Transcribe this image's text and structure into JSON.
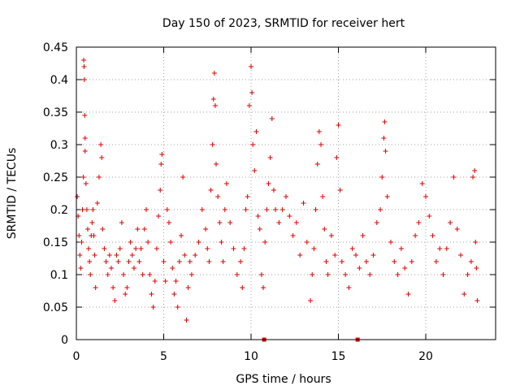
{
  "chart_data": {
    "type": "scatter",
    "title": "Day 150 of 2023, SRMTID for receiver hert",
    "xlabel": "GPS time / hours",
    "ylabel": "SRMTID / TECUs",
    "xlim": [
      0,
      24
    ],
    "ylim": [
      0,
      0.45
    ],
    "xticks": [
      0,
      5,
      10,
      15,
      20
    ],
    "yticks": [
      0,
      0.05,
      0.1,
      0.15,
      0.2,
      0.25,
      0.3,
      0.35,
      0.4,
      0.45
    ],
    "ytick_labels": [
      "0",
      "0.05",
      "0.1",
      "0.15",
      "0.2",
      "0.25",
      "0.3",
      "0.35",
      "0.4",
      "0.45"
    ],
    "grid": true,
    "marker": "plus",
    "color": "#e00000",
    "points": [
      [
        0.05,
        0.22
      ],
      [
        0.1,
        0.19
      ],
      [
        0.15,
        0.16
      ],
      [
        0.2,
        0.13
      ],
      [
        0.25,
        0.11
      ],
      [
        0.3,
        0.15
      ],
      [
        0.35,
        0.2
      ],
      [
        0.4,
        0.25
      ],
      [
        0.42,
        0.43
      ],
      [
        0.44,
        0.42
      ],
      [
        0.46,
        0.4
      ],
      [
        0.48,
        0.345
      ],
      [
        0.5,
        0.31
      ],
      [
        0.5,
        0.29
      ],
      [
        0.55,
        0.24
      ],
      [
        0.6,
        0.2
      ],
      [
        0.65,
        0.17
      ],
      [
        0.7,
        0.14
      ],
      [
        0.75,
        0.12
      ],
      [
        0.8,
        0.1
      ],
      [
        0.85,
        0.16
      ],
      [
        0.9,
        0.18
      ],
      [
        0.95,
        0.2
      ],
      [
        1.0,
        0.16
      ],
      [
        1.05,
        0.13
      ],
      [
        1.1,
        0.08
      ],
      [
        1.2,
        0.21
      ],
      [
        1.3,
        0.25
      ],
      [
        1.4,
        0.3
      ],
      [
        1.45,
        0.28
      ],
      [
        1.5,
        0.17
      ],
      [
        1.6,
        0.14
      ],
      [
        1.7,
        0.12
      ],
      [
        1.8,
        0.1
      ],
      [
        1.9,
        0.13
      ],
      [
        2.0,
        0.11
      ],
      [
        2.1,
        0.08
      ],
      [
        2.2,
        0.06
      ],
      [
        2.3,
        0.13
      ],
      [
        2.4,
        0.12
      ],
      [
        2.5,
        0.14
      ],
      [
        2.6,
        0.18
      ],
      [
        2.7,
        0.1
      ],
      [
        2.8,
        0.07
      ],
      [
        2.9,
        0.08
      ],
      [
        3.0,
        0.12
      ],
      [
        3.1,
        0.15
      ],
      [
        3.2,
        0.13
      ],
      [
        3.3,
        0.11
      ],
      [
        3.4,
        0.14
      ],
      [
        3.5,
        0.17
      ],
      [
        3.6,
        0.12
      ],
      [
        3.7,
        0.14
      ],
      [
        3.8,
        0.1
      ],
      [
        3.9,
        0.17
      ],
      [
        4.0,
        0.2
      ],
      [
        4.1,
        0.15
      ],
      [
        4.2,
        0.1
      ],
      [
        4.3,
        0.07
      ],
      [
        4.4,
        0.05
      ],
      [
        4.5,
        0.09
      ],
      [
        4.6,
        0.14
      ],
      [
        4.7,
        0.19
      ],
      [
        4.8,
        0.23
      ],
      [
        4.85,
        0.27
      ],
      [
        4.9,
        0.285
      ],
      [
        5.0,
        0.12
      ],
      [
        5.1,
        0.09
      ],
      [
        5.2,
        0.2
      ],
      [
        5.3,
        0.18
      ],
      [
        5.4,
        0.15
      ],
      [
        5.5,
        0.11
      ],
      [
        5.6,
        0.07
      ],
      [
        5.7,
        0.09
      ],
      [
        5.8,
        0.05
      ],
      [
        5.9,
        0.12
      ],
      [
        6.0,
        0.16
      ],
      [
        6.1,
        0.25
      ],
      [
        6.2,
        0.13
      ],
      [
        6.3,
        0.03
      ],
      [
        6.4,
        0.08
      ],
      [
        6.5,
        0.12
      ],
      [
        6.6,
        0.1
      ],
      [
        6.8,
        0.13
      ],
      [
        7.0,
        0.15
      ],
      [
        7.2,
        0.2
      ],
      [
        7.4,
        0.17
      ],
      [
        7.5,
        0.14
      ],
      [
        7.6,
        0.12
      ],
      [
        7.7,
        0.23
      ],
      [
        7.8,
        0.3
      ],
      [
        7.85,
        0.37
      ],
      [
        7.9,
        0.41
      ],
      [
        7.95,
        0.36
      ],
      [
        8.0,
        0.27
      ],
      [
        8.1,
        0.22
      ],
      [
        8.2,
        0.18
      ],
      [
        8.3,
        0.15
      ],
      [
        8.4,
        0.12
      ],
      [
        8.5,
        0.2
      ],
      [
        8.6,
        0.24
      ],
      [
        8.8,
        0.18
      ],
      [
        9.0,
        0.14
      ],
      [
        9.2,
        0.1
      ],
      [
        9.4,
        0.12
      ],
      [
        9.5,
        0.08
      ],
      [
        9.6,
        0.14
      ],
      [
        9.7,
        0.2
      ],
      [
        9.8,
        0.22
      ],
      [
        9.9,
        0.36
      ],
      [
        10.0,
        0.42
      ],
      [
        10.05,
        0.38
      ],
      [
        10.1,
        0.3
      ],
      [
        10.2,
        0.26
      ],
      [
        10.3,
        0.32
      ],
      [
        10.4,
        0.19
      ],
      [
        10.5,
        0.17
      ],
      [
        10.6,
        0.1
      ],
      [
        10.7,
        0.08
      ],
      [
        10.8,
        0.15
      ],
      [
        10.9,
        0.2
      ],
      [
        11.0,
        0.24
      ],
      [
        11.1,
        0.28
      ],
      [
        11.2,
        0.34
      ],
      [
        11.3,
        0.23
      ],
      [
        11.4,
        0.2
      ],
      [
        11.6,
        0.18
      ],
      [
        11.8,
        0.2
      ],
      [
        12.0,
        0.22
      ],
      [
        12.2,
        0.19
      ],
      [
        12.4,
        0.16
      ],
      [
        12.6,
        0.18
      ],
      [
        12.8,
        0.13
      ],
      [
        13.0,
        0.21
      ],
      [
        13.2,
        0.15
      ],
      [
        13.4,
        0.06
      ],
      [
        13.5,
        0.1
      ],
      [
        13.6,
        0.14
      ],
      [
        13.7,
        0.2
      ],
      [
        13.8,
        0.27
      ],
      [
        13.9,
        0.32
      ],
      [
        14.0,
        0.3
      ],
      [
        14.1,
        0.22
      ],
      [
        14.2,
        0.17
      ],
      [
        14.3,
        0.12
      ],
      [
        14.4,
        0.1
      ],
      [
        14.6,
        0.16
      ],
      [
        14.8,
        0.13
      ],
      [
        14.9,
        0.28
      ],
      [
        15.0,
        0.33
      ],
      [
        15.1,
        0.23
      ],
      [
        15.2,
        0.12
      ],
      [
        15.4,
        0.1
      ],
      [
        15.6,
        0.08
      ],
      [
        15.8,
        0.14
      ],
      [
        16.0,
        0.13
      ],
      [
        16.2,
        0.11
      ],
      [
        16.4,
        0.16
      ],
      [
        16.6,
        0.12
      ],
      [
        16.8,
        0.1
      ],
      [
        17.0,
        0.13
      ],
      [
        17.2,
        0.18
      ],
      [
        17.4,
        0.2
      ],
      [
        17.5,
        0.25
      ],
      [
        17.6,
        0.31
      ],
      [
        17.65,
        0.335
      ],
      [
        17.7,
        0.29
      ],
      [
        17.8,
        0.22
      ],
      [
        18.0,
        0.15
      ],
      [
        18.2,
        0.12
      ],
      [
        18.4,
        0.1
      ],
      [
        18.6,
        0.14
      ],
      [
        18.8,
        0.11
      ],
      [
        19.0,
        0.07
      ],
      [
        19.2,
        0.12
      ],
      [
        19.4,
        0.16
      ],
      [
        19.6,
        0.18
      ],
      [
        19.8,
        0.24
      ],
      [
        20.0,
        0.22
      ],
      [
        20.2,
        0.19
      ],
      [
        20.4,
        0.16
      ],
      [
        20.6,
        0.12
      ],
      [
        20.8,
        0.14
      ],
      [
        21.0,
        0.1
      ],
      [
        21.2,
        0.14
      ],
      [
        21.4,
        0.18
      ],
      [
        21.6,
        0.25
      ],
      [
        21.8,
        0.17
      ],
      [
        22.0,
        0.13
      ],
      [
        22.2,
        0.07
      ],
      [
        22.4,
        0.1
      ],
      [
        22.6,
        0.12
      ],
      [
        22.7,
        0.25
      ],
      [
        22.8,
        0.26
      ],
      [
        22.85,
        0.15
      ],
      [
        22.9,
        0.11
      ],
      [
        22.95,
        0.06
      ]
    ],
    "gap_markers_x": [
      10.75,
      16.1
    ]
  }
}
